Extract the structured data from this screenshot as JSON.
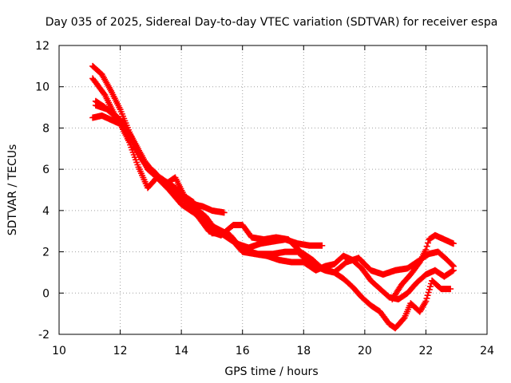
{
  "chart_data": {
    "type": "scatter",
    "title": "Day 035 of 2025, Sidereal Day-to-day VTEC variation (SDTVAR) for receiver espa",
    "xlabel": "GPS time / hours",
    "ylabel": "SDTVAR / TECUs",
    "xlim": [
      10,
      24
    ],
    "ylim": [
      -2,
      12
    ],
    "xticks": [
      10,
      12,
      14,
      16,
      18,
      20,
      22,
      24
    ],
    "yticks": [
      -2,
      0,
      2,
      4,
      6,
      8,
      10,
      12
    ],
    "grid": true,
    "marker": "+",
    "series": [
      {
        "name": "trace-1",
        "color": "#ff0000",
        "points": [
          [
            11.1,
            11.0
          ],
          [
            11.4,
            10.6
          ],
          [
            11.7,
            9.8
          ],
          [
            12.0,
            8.9
          ],
          [
            12.3,
            7.8
          ],
          [
            12.6,
            6.8
          ],
          [
            12.9,
            6.0
          ],
          [
            13.2,
            5.6
          ],
          [
            13.5,
            5.3
          ],
          [
            13.8,
            5.1
          ],
          [
            14.1,
            4.6
          ],
          [
            14.4,
            4.3
          ],
          [
            14.7,
            4.2
          ],
          [
            15.0,
            4.0
          ],
          [
            15.4,
            3.9
          ]
        ]
      },
      {
        "name": "trace-2",
        "color": "#ff0000",
        "points": [
          [
            11.1,
            10.4
          ],
          [
            11.5,
            9.6
          ],
          [
            11.8,
            8.7
          ],
          [
            12.2,
            7.9
          ],
          [
            12.5,
            7.0
          ],
          [
            12.8,
            6.3
          ],
          [
            13.1,
            5.9
          ],
          [
            13.4,
            5.4
          ],
          [
            13.7,
            5.0
          ],
          [
            14.0,
            4.6
          ],
          [
            14.4,
            4.2
          ],
          [
            14.8,
            3.7
          ],
          [
            15.1,
            3.1
          ],
          [
            15.4,
            2.8
          ],
          [
            15.8,
            2.4
          ],
          [
            16.2,
            2.2
          ],
          [
            16.6,
            2.4
          ],
          [
            17.0,
            2.5
          ],
          [
            17.4,
            2.6
          ],
          [
            17.8,
            2.4
          ],
          [
            18.2,
            2.3
          ],
          [
            18.6,
            2.3
          ]
        ]
      },
      {
        "name": "trace-3",
        "color": "#ff0000",
        "points": [
          [
            11.2,
            9.3
          ],
          [
            11.5,
            9.0
          ],
          [
            11.8,
            8.6
          ],
          [
            12.1,
            8.2
          ],
          [
            12.4,
            7.4
          ],
          [
            12.7,
            6.5
          ],
          [
            13.0,
            5.9
          ],
          [
            13.4,
            5.5
          ],
          [
            13.8,
            5.1
          ],
          [
            14.2,
            4.4
          ],
          [
            14.6,
            3.6
          ],
          [
            14.9,
            3.0
          ],
          [
            15.3,
            2.8
          ],
          [
            15.7,
            3.3
          ],
          [
            16.0,
            3.3
          ],
          [
            16.3,
            2.7
          ],
          [
            16.7,
            2.6
          ],
          [
            17.1,
            2.7
          ],
          [
            17.5,
            2.6
          ],
          [
            17.9,
            2.0
          ],
          [
            18.3,
            1.6
          ],
          [
            18.6,
            1.2
          ],
          [
            19.0,
            1.0
          ],
          [
            19.4,
            1.5
          ],
          [
            19.8,
            1.7
          ],
          [
            20.2,
            1.1
          ],
          [
            20.6,
            0.9
          ],
          [
            21.0,
            1.1
          ],
          [
            21.4,
            1.2
          ],
          [
            21.8,
            1.6
          ],
          [
            22.1,
            1.9
          ],
          [
            22.4,
            2.0
          ],
          [
            22.7,
            1.6
          ],
          [
            22.9,
            1.3
          ]
        ]
      },
      {
        "name": "trace-4",
        "color": "#ff0000",
        "points": [
          [
            11.1,
            8.5
          ],
          [
            11.4,
            8.6
          ],
          [
            11.7,
            8.4
          ],
          [
            12.0,
            8.2
          ],
          [
            12.3,
            7.3
          ],
          [
            12.6,
            6.1
          ],
          [
            12.9,
            5.1
          ],
          [
            13.2,
            5.6
          ],
          [
            13.5,
            5.3
          ],
          [
            13.8,
            5.6
          ],
          [
            14.1,
            4.7
          ],
          [
            14.4,
            4.4
          ],
          [
            14.7,
            3.6
          ],
          [
            15.0,
            2.9
          ],
          [
            15.3,
            2.9
          ],
          [
            15.7,
            2.5
          ],
          [
            16.0,
            2.0
          ],
          [
            16.4,
            1.9
          ],
          [
            16.8,
            1.8
          ],
          [
            17.2,
            1.6
          ],
          [
            17.6,
            1.5
          ],
          [
            18.0,
            1.5
          ],
          [
            18.4,
            1.1
          ],
          [
            18.7,
            1.3
          ],
          [
            19.0,
            1.4
          ],
          [
            19.3,
            1.8
          ],
          [
            19.6,
            1.6
          ],
          [
            19.9,
            1.2
          ],
          [
            20.2,
            0.6
          ],
          [
            20.5,
            0.2
          ],
          [
            20.8,
            -0.2
          ],
          [
            21.1,
            -0.3
          ],
          [
            21.4,
            0.0
          ],
          [
            21.7,
            0.5
          ],
          [
            22.0,
            0.9
          ],
          [
            22.3,
            1.1
          ],
          [
            22.6,
            0.8
          ],
          [
            22.9,
            1.1
          ]
        ]
      },
      {
        "name": "trace-5",
        "color": "#ff0000",
        "points": [
          [
            11.2,
            9.1
          ],
          [
            11.6,
            8.9
          ],
          [
            12.0,
            8.4
          ],
          [
            12.4,
            7.5
          ],
          [
            12.8,
            6.4
          ],
          [
            13.2,
            5.6
          ],
          [
            13.6,
            5.0
          ],
          [
            14.0,
            4.3
          ],
          [
            14.4,
            3.9
          ],
          [
            14.8,
            3.4
          ],
          [
            15.2,
            3.1
          ],
          [
            15.6,
            2.8
          ],
          [
            16.0,
            2.1
          ],
          [
            16.5,
            1.9
          ],
          [
            17.0,
            1.9
          ],
          [
            17.4,
            2.0
          ],
          [
            17.8,
            2.0
          ],
          [
            18.1,
            1.6
          ],
          [
            18.4,
            1.3
          ],
          [
            18.7,
            1.1
          ],
          [
            19.0,
            1.0
          ],
          [
            19.3,
            0.7
          ],
          [
            19.6,
            0.3
          ],
          [
            19.9,
            -0.2
          ],
          [
            20.2,
            -0.6
          ],
          [
            20.5,
            -0.9
          ],
          [
            20.8,
            -1.5
          ],
          [
            21.0,
            -1.7
          ],
          [
            21.3,
            -1.2
          ],
          [
            21.5,
            -0.5
          ],
          [
            21.8,
            -0.9
          ],
          [
            22.0,
            -0.4
          ],
          [
            22.2,
            0.6
          ],
          [
            22.5,
            0.2
          ],
          [
            22.8,
            0.2
          ]
        ]
      },
      {
        "name": "trace-6",
        "color": "#ff0000",
        "points": [
          [
            20.9,
            -0.3
          ],
          [
            21.2,
            0.4
          ],
          [
            21.5,
            0.9
          ],
          [
            21.8,
            1.5
          ],
          [
            22.0,
            2.1
          ],
          [
            22.1,
            2.6
          ],
          [
            22.3,
            2.8
          ],
          [
            22.6,
            2.6
          ],
          [
            22.9,
            2.4
          ]
        ]
      }
    ]
  }
}
